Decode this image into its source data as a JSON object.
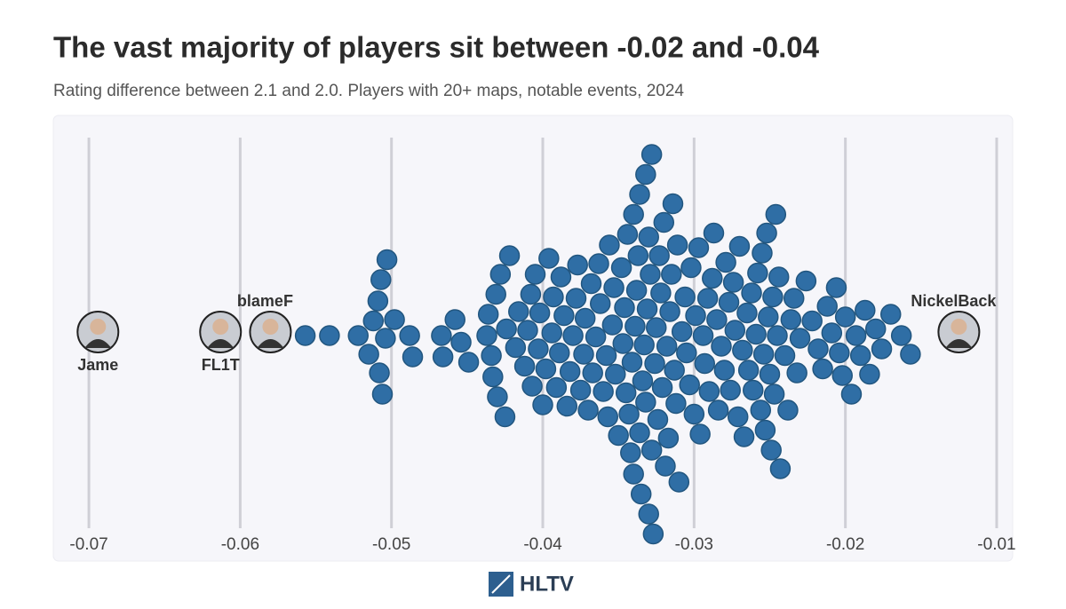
{
  "chart_data": {
    "type": "beeswarm",
    "title": "The vast majority of players sit between -0.02 and -0.04",
    "subtitle": "Rating difference between 2.1 and 2.0. Players with 20+ maps, notable events, 2024",
    "color": "#2f6ea5",
    "xlim": [
      -0.072,
      -0.009
    ],
    "xticks": [
      -0.07,
      -0.06,
      -0.05,
      -0.04,
      -0.03,
      -0.02,
      -0.01
    ],
    "grid": true,
    "values": [
      -0.0557,
      -0.0541,
      -0.0522,
      -0.0515,
      -0.0512,
      -0.0509,
      -0.0508,
      -0.0507,
      -0.0506,
      -0.0504,
      -0.0503,
      -0.0498,
      -0.0488,
      -0.0486,
      -0.0467,
      -0.0466,
      -0.0458,
      -0.0454,
      -0.0449,
      -0.0437,
      -0.0436,
      -0.0434,
      -0.0433,
      -0.0431,
      -0.043,
      -0.0428,
      -0.0425,
      -0.0424,
      -0.0422,
      -0.0418,
      -0.0416,
      -0.0412,
      -0.041,
      -0.0408,
      -0.0407,
      -0.0405,
      -0.0403,
      -0.0402,
      -0.04,
      -0.0398,
      -0.0396,
      -0.0394,
      -0.0393,
      -0.0391,
      -0.0389,
      -0.0388,
      -0.0386,
      -0.0384,
      -0.0382,
      -0.038,
      -0.0378,
      -0.0377,
      -0.0375,
      -0.0373,
      -0.0372,
      -0.037,
      -0.0368,
      -0.0367,
      -0.0365,
      -0.0363,
      -0.0362,
      -0.036,
      -0.0358,
      -0.0357,
      -0.0356,
      -0.0354,
      -0.0353,
      -0.0352,
      -0.035,
      -0.0348,
      -0.0347,
      -0.0346,
      -0.0345,
      -0.0344,
      -0.0343,
      -0.0342,
      -0.0341,
      -0.034,
      -0.034,
      -0.0339,
      -0.0338,
      -0.0337,
      -0.0336,
      -0.0336,
      -0.0335,
      -0.0334,
      -0.0333,
      -0.0332,
      -0.0332,
      -0.0331,
      -0.033,
      -0.033,
      -0.0329,
      -0.0328,
      -0.0328,
      -0.0327,
      -0.0326,
      -0.0325,
      -0.0324,
      -0.0323,
      -0.0322,
      -0.0321,
      -0.032,
      -0.0319,
      -0.0318,
      -0.0317,
      -0.0316,
      -0.0315,
      -0.0314,
      -0.0313,
      -0.0312,
      -0.0311,
      -0.031,
      -0.0308,
      -0.0306,
      -0.0305,
      -0.0303,
      -0.0302,
      -0.03,
      -0.0299,
      -0.0297,
      -0.0296,
      -0.0294,
      -0.0293,
      -0.0291,
      -0.029,
      -0.0288,
      -0.0287,
      -0.0285,
      -0.0284,
      -0.0282,
      -0.028,
      -0.0279,
      -0.0277,
      -0.0276,
      -0.0274,
      -0.0273,
      -0.0271,
      -0.027,
      -0.0268,
      -0.0267,
      -0.0265,
      -0.0264,
      -0.0262,
      -0.0261,
      -0.0259,
      -0.0258,
      -0.0256,
      -0.0255,
      -0.0254,
      -0.0253,
      -0.0252,
      -0.0251,
      -0.025,
      -0.0249,
      -0.0248,
      -0.0247,
      -0.0246,
      -0.0245,
      -0.0244,
      -0.0243,
      -0.024,
      -0.0238,
      -0.0236,
      -0.0234,
      -0.0232,
      -0.023,
      -0.0226,
      -0.0222,
      -0.0218,
      -0.0215,
      -0.0212,
      -0.0209,
      -0.0206,
      -0.0204,
      -0.0202,
      -0.02,
      -0.0196,
      -0.0193,
      -0.019,
      -0.0187,
      -0.0184,
      -0.018,
      -0.0176,
      -0.017,
      -0.0163,
      -0.0157
    ],
    "highlighted": [
      {
        "name": "Jame",
        "value": -0.0694,
        "label_position": "below"
      },
      {
        "name": "FL1T",
        "value": -0.0613,
        "label_position": "below"
      },
      {
        "name": "blameF",
        "value": -0.058,
        "label_position": "above"
      },
      {
        "name": "NickelBack",
        "value": -0.0125,
        "label_position": "above"
      }
    ],
    "source": "HLTV"
  }
}
